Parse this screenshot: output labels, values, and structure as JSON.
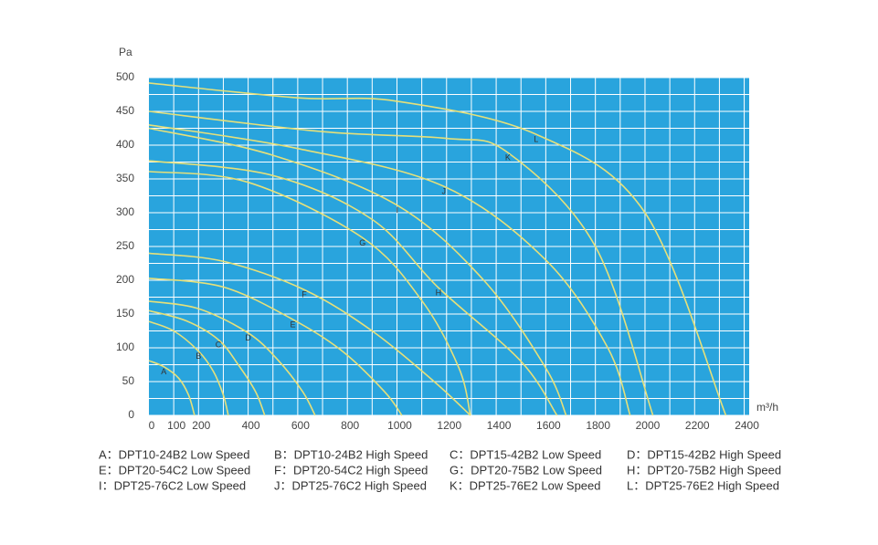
{
  "chart_data": {
    "type": "line",
    "ylabel": "Pa",
    "xlabel": "m³/h",
    "xlim": [
      0,
      2420
    ],
    "ylim": [
      0,
      500
    ],
    "xticks": [
      0,
      100,
      200,
      400,
      600,
      800,
      1000,
      1200,
      1400,
      1600,
      1800,
      2000,
      2200,
      2400
    ],
    "yticks": [
      0,
      50,
      100,
      150,
      200,
      250,
      300,
      350,
      400,
      450,
      500
    ],
    "grid": true,
    "background": "#29a4dd",
    "color": "#e6e07a",
    "series": [
      {
        "name": "A",
        "x": [
          0,
          60,
          120,
          160,
          184
        ],
        "values": [
          81,
          72,
          55,
          30,
          0
        ]
      },
      {
        "name": "B",
        "x": [
          0,
          100,
          200,
          260,
          300,
          320
        ],
        "values": [
          139,
          125,
          95,
          65,
          30,
          0
        ]
      },
      {
        "name": "C",
        "x": [
          0,
          150,
          280,
          360,
          430,
          467
        ],
        "values": [
          155,
          140,
          112,
          75,
          35,
          0
        ]
      },
      {
        "name": "D",
        "x": [
          0,
          200,
          400,
          520,
          620,
          670
        ],
        "values": [
          169,
          158,
          122,
          82,
          35,
          0
        ]
      },
      {
        "name": "E",
        "x": [
          0,
          300,
          580,
          780,
          950,
          1020
        ],
        "values": [
          203,
          190,
          142,
          95,
          35,
          0
        ]
      },
      {
        "name": "F",
        "x": [
          0,
          300,
          626,
          900,
          1150,
          1296
        ],
        "values": [
          240,
          228,
          186,
          125,
          50,
          0
        ]
      },
      {
        "name": "G",
        "x": [
          0,
          400,
          861,
          1100,
          1250,
          1296
        ],
        "values": [
          361,
          345,
          263,
          170,
          70,
          0
        ]
      },
      {
        "name": "H",
        "x": [
          0,
          500,
          900,
          1167,
          1500,
          1645
        ],
        "values": [
          377,
          355,
          290,
          189,
          80,
          0
        ]
      },
      {
        "name": "I",
        "x": [
          0,
          500,
          1001,
          1350,
          1600,
          1682
        ],
        "values": [
          425,
          385,
          311,
          200,
          70,
          0
        ]
      },
      {
        "name": "J",
        "x": [
          0,
          600,
          1189,
          1600,
          1850,
          1940
        ],
        "values": [
          430,
          395,
          339,
          230,
          100,
          0
        ]
      },
      {
        "name": "K",
        "x": [
          0,
          700,
          1200,
          1447,
          1800,
          2032
        ],
        "values": [
          450,
          420,
          410,
          389,
          250,
          0
        ]
      },
      {
        "name": "L",
        "x": [
          0,
          600,
          1000,
          1561,
          2000,
          2326
        ],
        "values": [
          492,
          470,
          465,
          416,
          300,
          0
        ]
      }
    ],
    "legend": [
      "A：DPT10-24B2 Low Speed",
      "B：DPT10-24B2 High Speed",
      "C：DPT15-42B2 Low Speed",
      "D：DPT15-42B2 High Speed",
      "E：DPT20-54C2 Low Speed",
      "F：DPT20-54C2 High Speed",
      "G：DPT20-75B2 Low Speed",
      "H：DPT20-75B2 High Speed",
      "I：DPT25-76C2 Low Speed",
      "J：DPT25-76C2 High Speed",
      "K：DPT25-76E2 Low Speed",
      "L：DPT25-76E2 High Speed"
    ]
  }
}
